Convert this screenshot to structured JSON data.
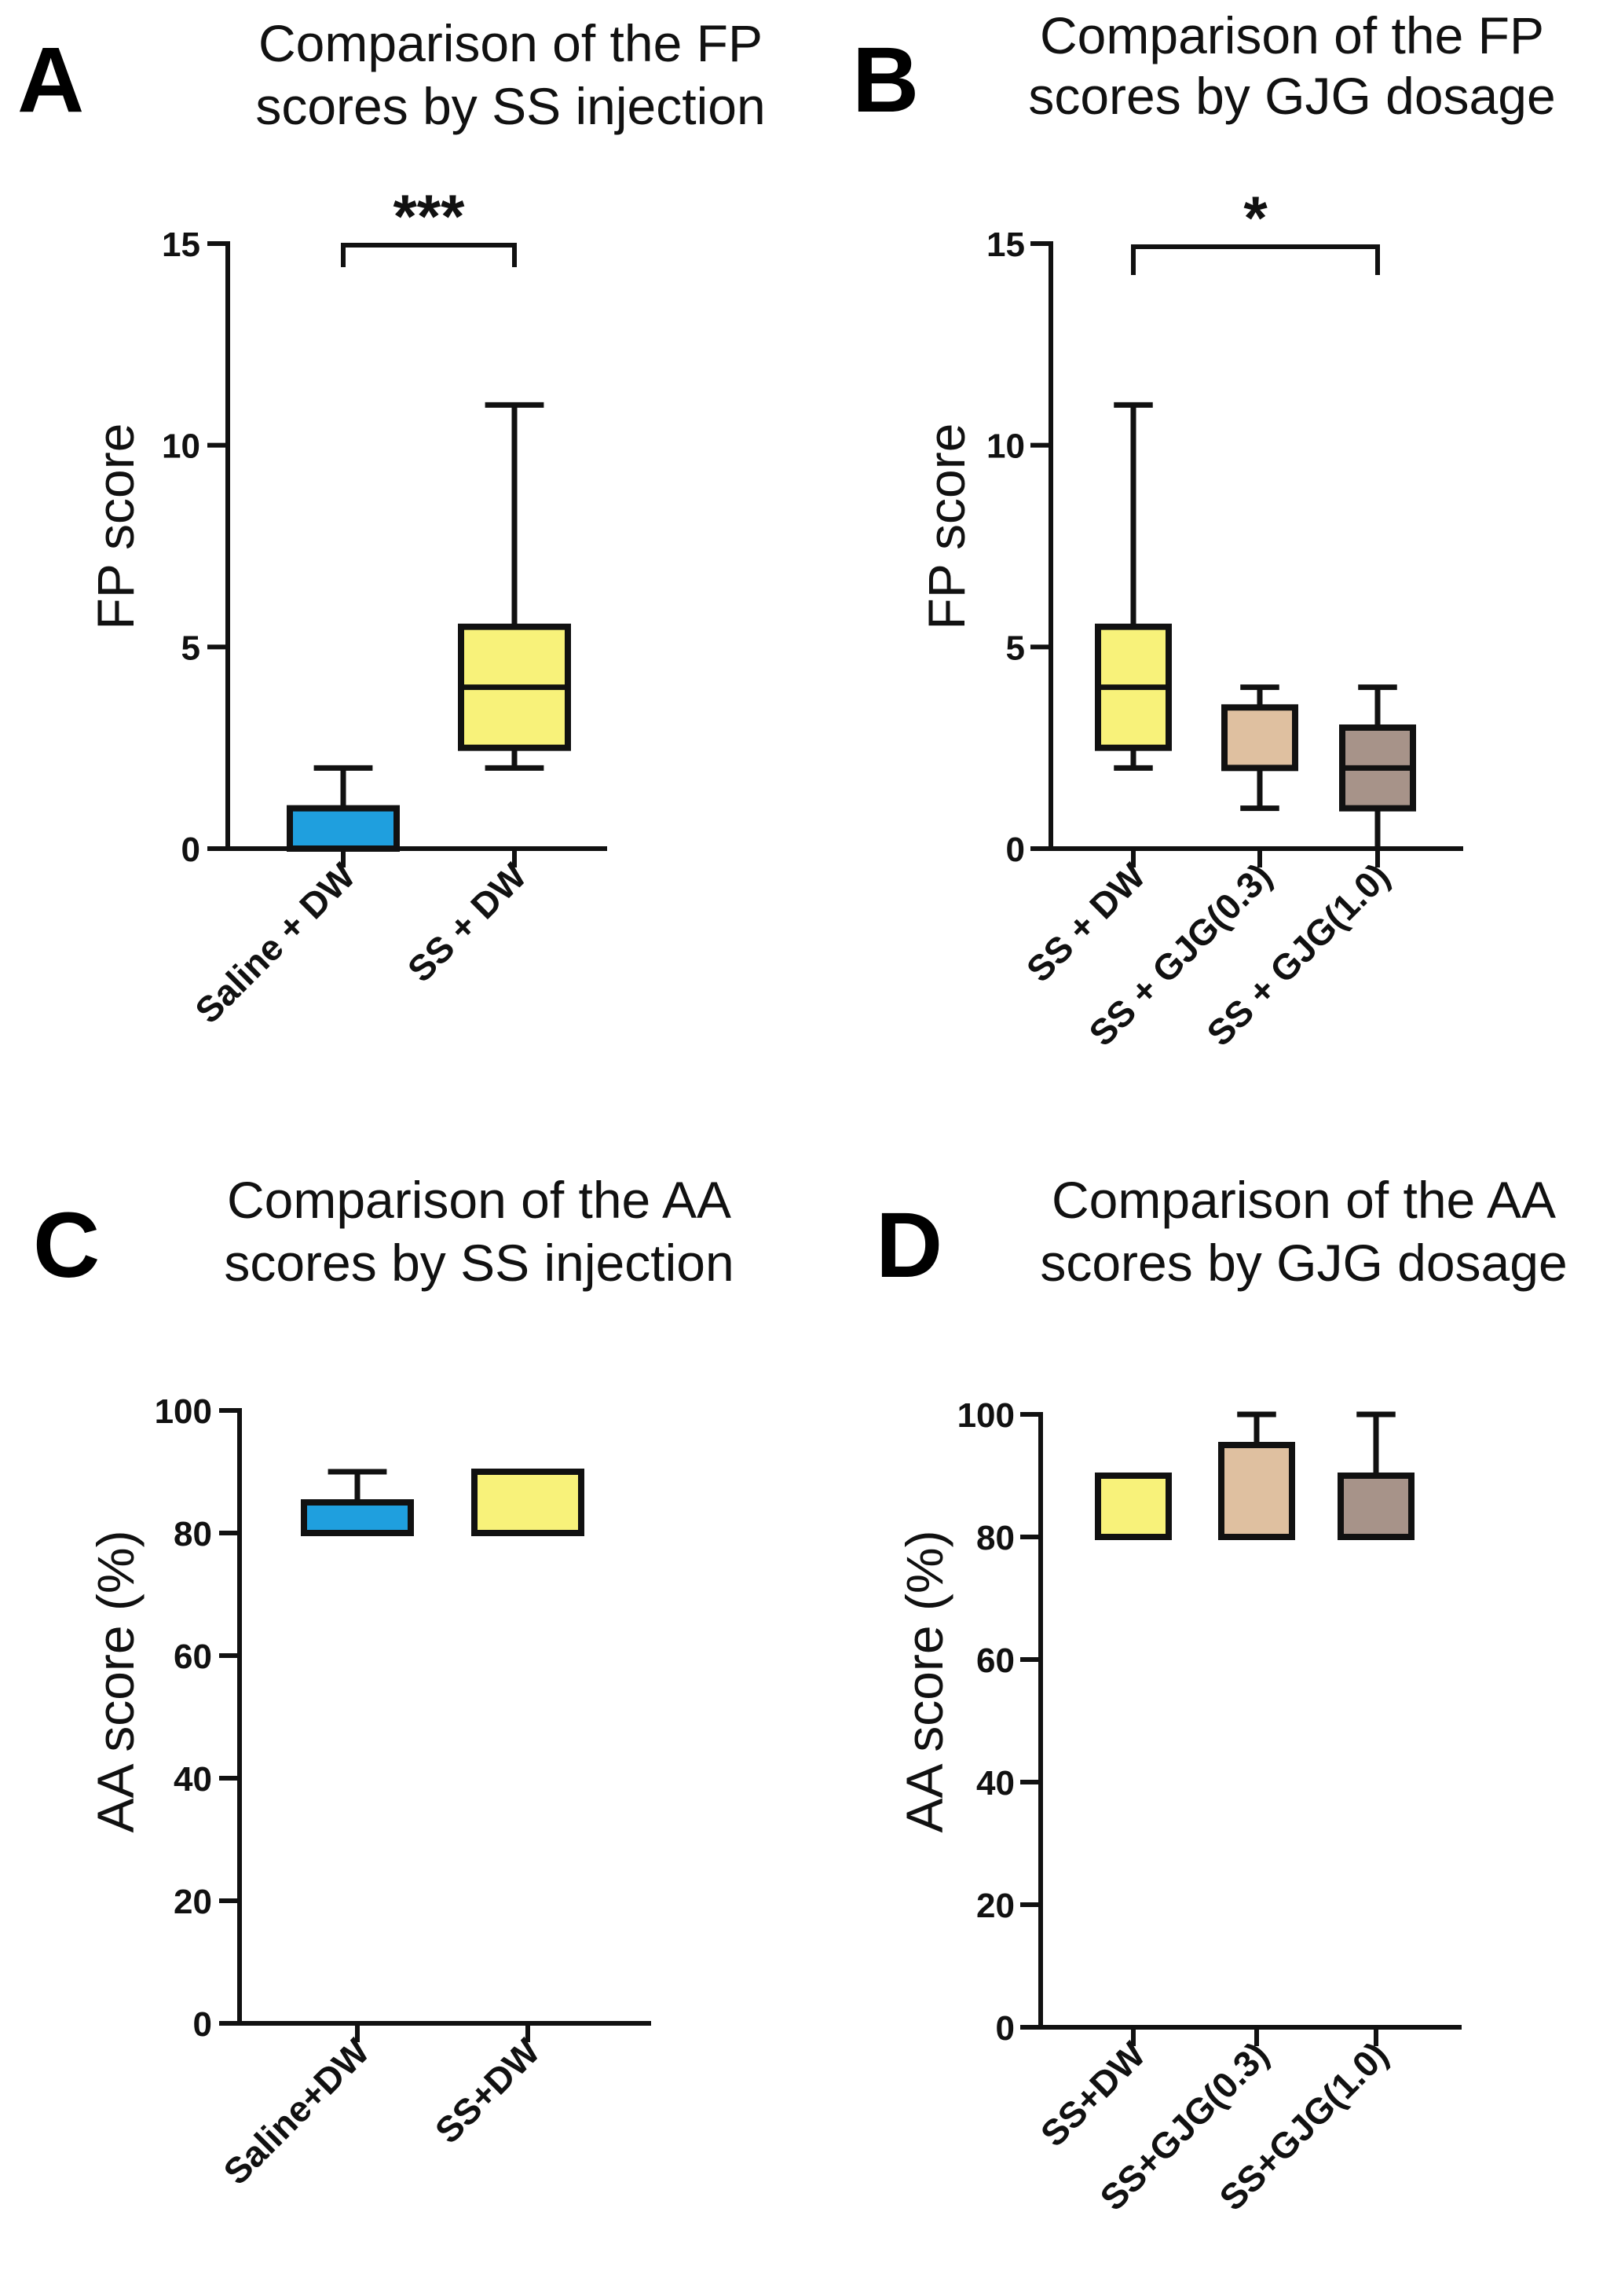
{
  "chart_data": [
    {
      "type": "box",
      "letter": "A",
      "title_lines": [
        "Comparison of the FP",
        "scores by SS injection"
      ],
      "ylabel": "FP score",
      "ylim": [
        0,
        15
      ],
      "yticks": [
        "0",
        "5",
        "10",
        "15"
      ],
      "categories": [
        "Saline + DW",
        "SS + DW"
      ],
      "boxes": [
        {
          "min": 0,
          "q1": 0,
          "median": 0,
          "q3": 1,
          "max": 2,
          "color": "#1f9fde"
        },
        {
          "min": 2,
          "q1": 2.5,
          "median": 4,
          "q3": 5.5,
          "max": 11,
          "color": "#f8f27a"
        }
      ],
      "significance": [
        {
          "from": 0,
          "to": 1,
          "label": "***",
          "y": 15
        }
      ]
    },
    {
      "type": "box",
      "letter": "B",
      "title_lines": [
        "Comparison of the FP",
        "scores by GJG dosage"
      ],
      "ylabel": "FP score",
      "ylim": [
        0,
        15
      ],
      "yticks": [
        "0",
        "5",
        "10",
        "15"
      ],
      "categories": [
        "SS + DW",
        "SS + GJG(0.3)",
        "SS + GJG(1.0)"
      ],
      "boxes": [
        {
          "min": 2,
          "q1": 2.5,
          "median": 4,
          "q3": 5.5,
          "max": 11,
          "color": "#f8f27a"
        },
        {
          "min": 1,
          "q1": 2,
          "median": 2,
          "q3": 3.5,
          "max": 4,
          "color": "#dfc0a0"
        },
        {
          "min": 0,
          "q1": 1,
          "median": 2,
          "q3": 3,
          "max": 4,
          "color": "#a79389"
        }
      ],
      "significance": [
        {
          "from": 0,
          "to": 2,
          "label": "*",
          "y": 15
        }
      ]
    },
    {
      "type": "box",
      "letter": "C",
      "title_lines": [
        "Comparison of the AA",
        "scores by SS injection"
      ],
      "ylabel": "AA score (%)",
      "ylim": [
        0,
        100
      ],
      "yticks": [
        "0",
        "20",
        "40",
        "60",
        "80",
        "100"
      ],
      "categories": [
        "Saline+DW",
        "SS+DW"
      ],
      "boxes": [
        {
          "min": 80,
          "q1": 80,
          "median": 80,
          "q3": 85,
          "max": 90,
          "color": "#1f9fde"
        },
        {
          "min": 80,
          "q1": 80,
          "median": 80,
          "q3": 90,
          "max": 90,
          "color": "#f8f27a"
        }
      ],
      "significance": []
    },
    {
      "type": "box",
      "letter": "D",
      "title_lines": [
        "Comparison of the AA",
        "scores by GJG dosage"
      ],
      "ylabel": "AA score (%)",
      "ylim": [
        0,
        100
      ],
      "yticks": [
        "0",
        "20",
        "40",
        "60",
        "80",
        "100"
      ],
      "categories": [
        "SS+DW",
        "SS+GJG(0.3)",
        "SS+GJG(1.0)"
      ],
      "boxes": [
        {
          "min": 80,
          "q1": 80,
          "median": 80,
          "q3": 90,
          "max": 90,
          "color": "#f8f27a"
        },
        {
          "min": 80,
          "q1": 80,
          "median": 80,
          "q3": 95,
          "max": 100,
          "color": "#dfc0a0"
        },
        {
          "min": 80,
          "q1": 80,
          "median": 80,
          "q3": 90,
          "max": 100,
          "color": "#a79389"
        }
      ],
      "significance": []
    }
  ]
}
